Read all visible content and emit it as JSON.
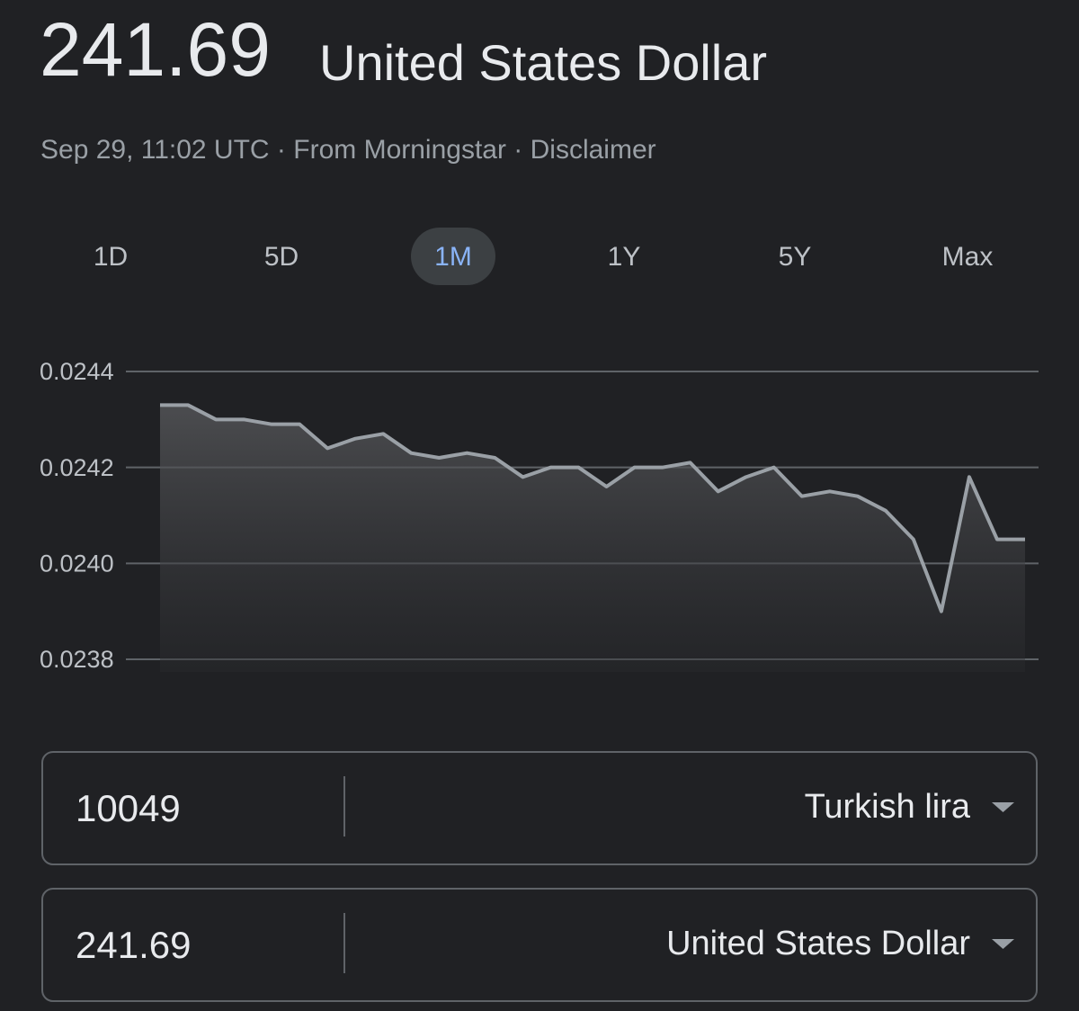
{
  "header": {
    "amount": "241.69",
    "currency": "United States Dollar",
    "meta": "Sep 29, 11:02 UTC · From Morningstar · Disclaimer"
  },
  "tabs": {
    "items": [
      "1D",
      "5D",
      "1M",
      "1Y",
      "5Y",
      "Max"
    ],
    "selected": 2
  },
  "chart_data": {
    "type": "line",
    "color": "#9aa0a6",
    "grid": true,
    "categories": [
      null,
      null,
      null,
      null,
      null,
      null,
      null,
      null,
      null,
      null,
      null,
      null,
      null,
      null,
      null,
      null,
      null,
      null,
      null,
      null,
      null,
      null,
      null,
      null,
      null,
      null,
      null,
      null,
      null,
      null,
      null,
      null
    ],
    "values": [
      0.02433,
      0.02433,
      0.0243,
      0.0243,
      0.02429,
      0.02429,
      0.02424,
      0.02426,
      0.02427,
      0.02423,
      0.02422,
      0.02423,
      0.02422,
      0.02418,
      0.0242,
      0.0242,
      0.02416,
      0.0242,
      0.0242,
      0.02421,
      0.02415,
      0.02418,
      0.0242,
      0.02414,
      0.02415,
      0.02414,
      0.02411,
      0.02405,
      0.0239,
      0.02418,
      0.02405,
      0.02405
    ],
    "ylim": [
      0.0238,
      0.0244
    ],
    "yticks": [
      0.0238,
      {
        "value": 0.024,
        "label": "0.0240"
      },
      0.0242,
      0.0244
    ]
  },
  "converter": {
    "rows": [
      {
        "amount": "10049",
        "currency": "Turkish lira"
      },
      {
        "amount": "241.69",
        "currency": "United States Dollar"
      }
    ]
  }
}
